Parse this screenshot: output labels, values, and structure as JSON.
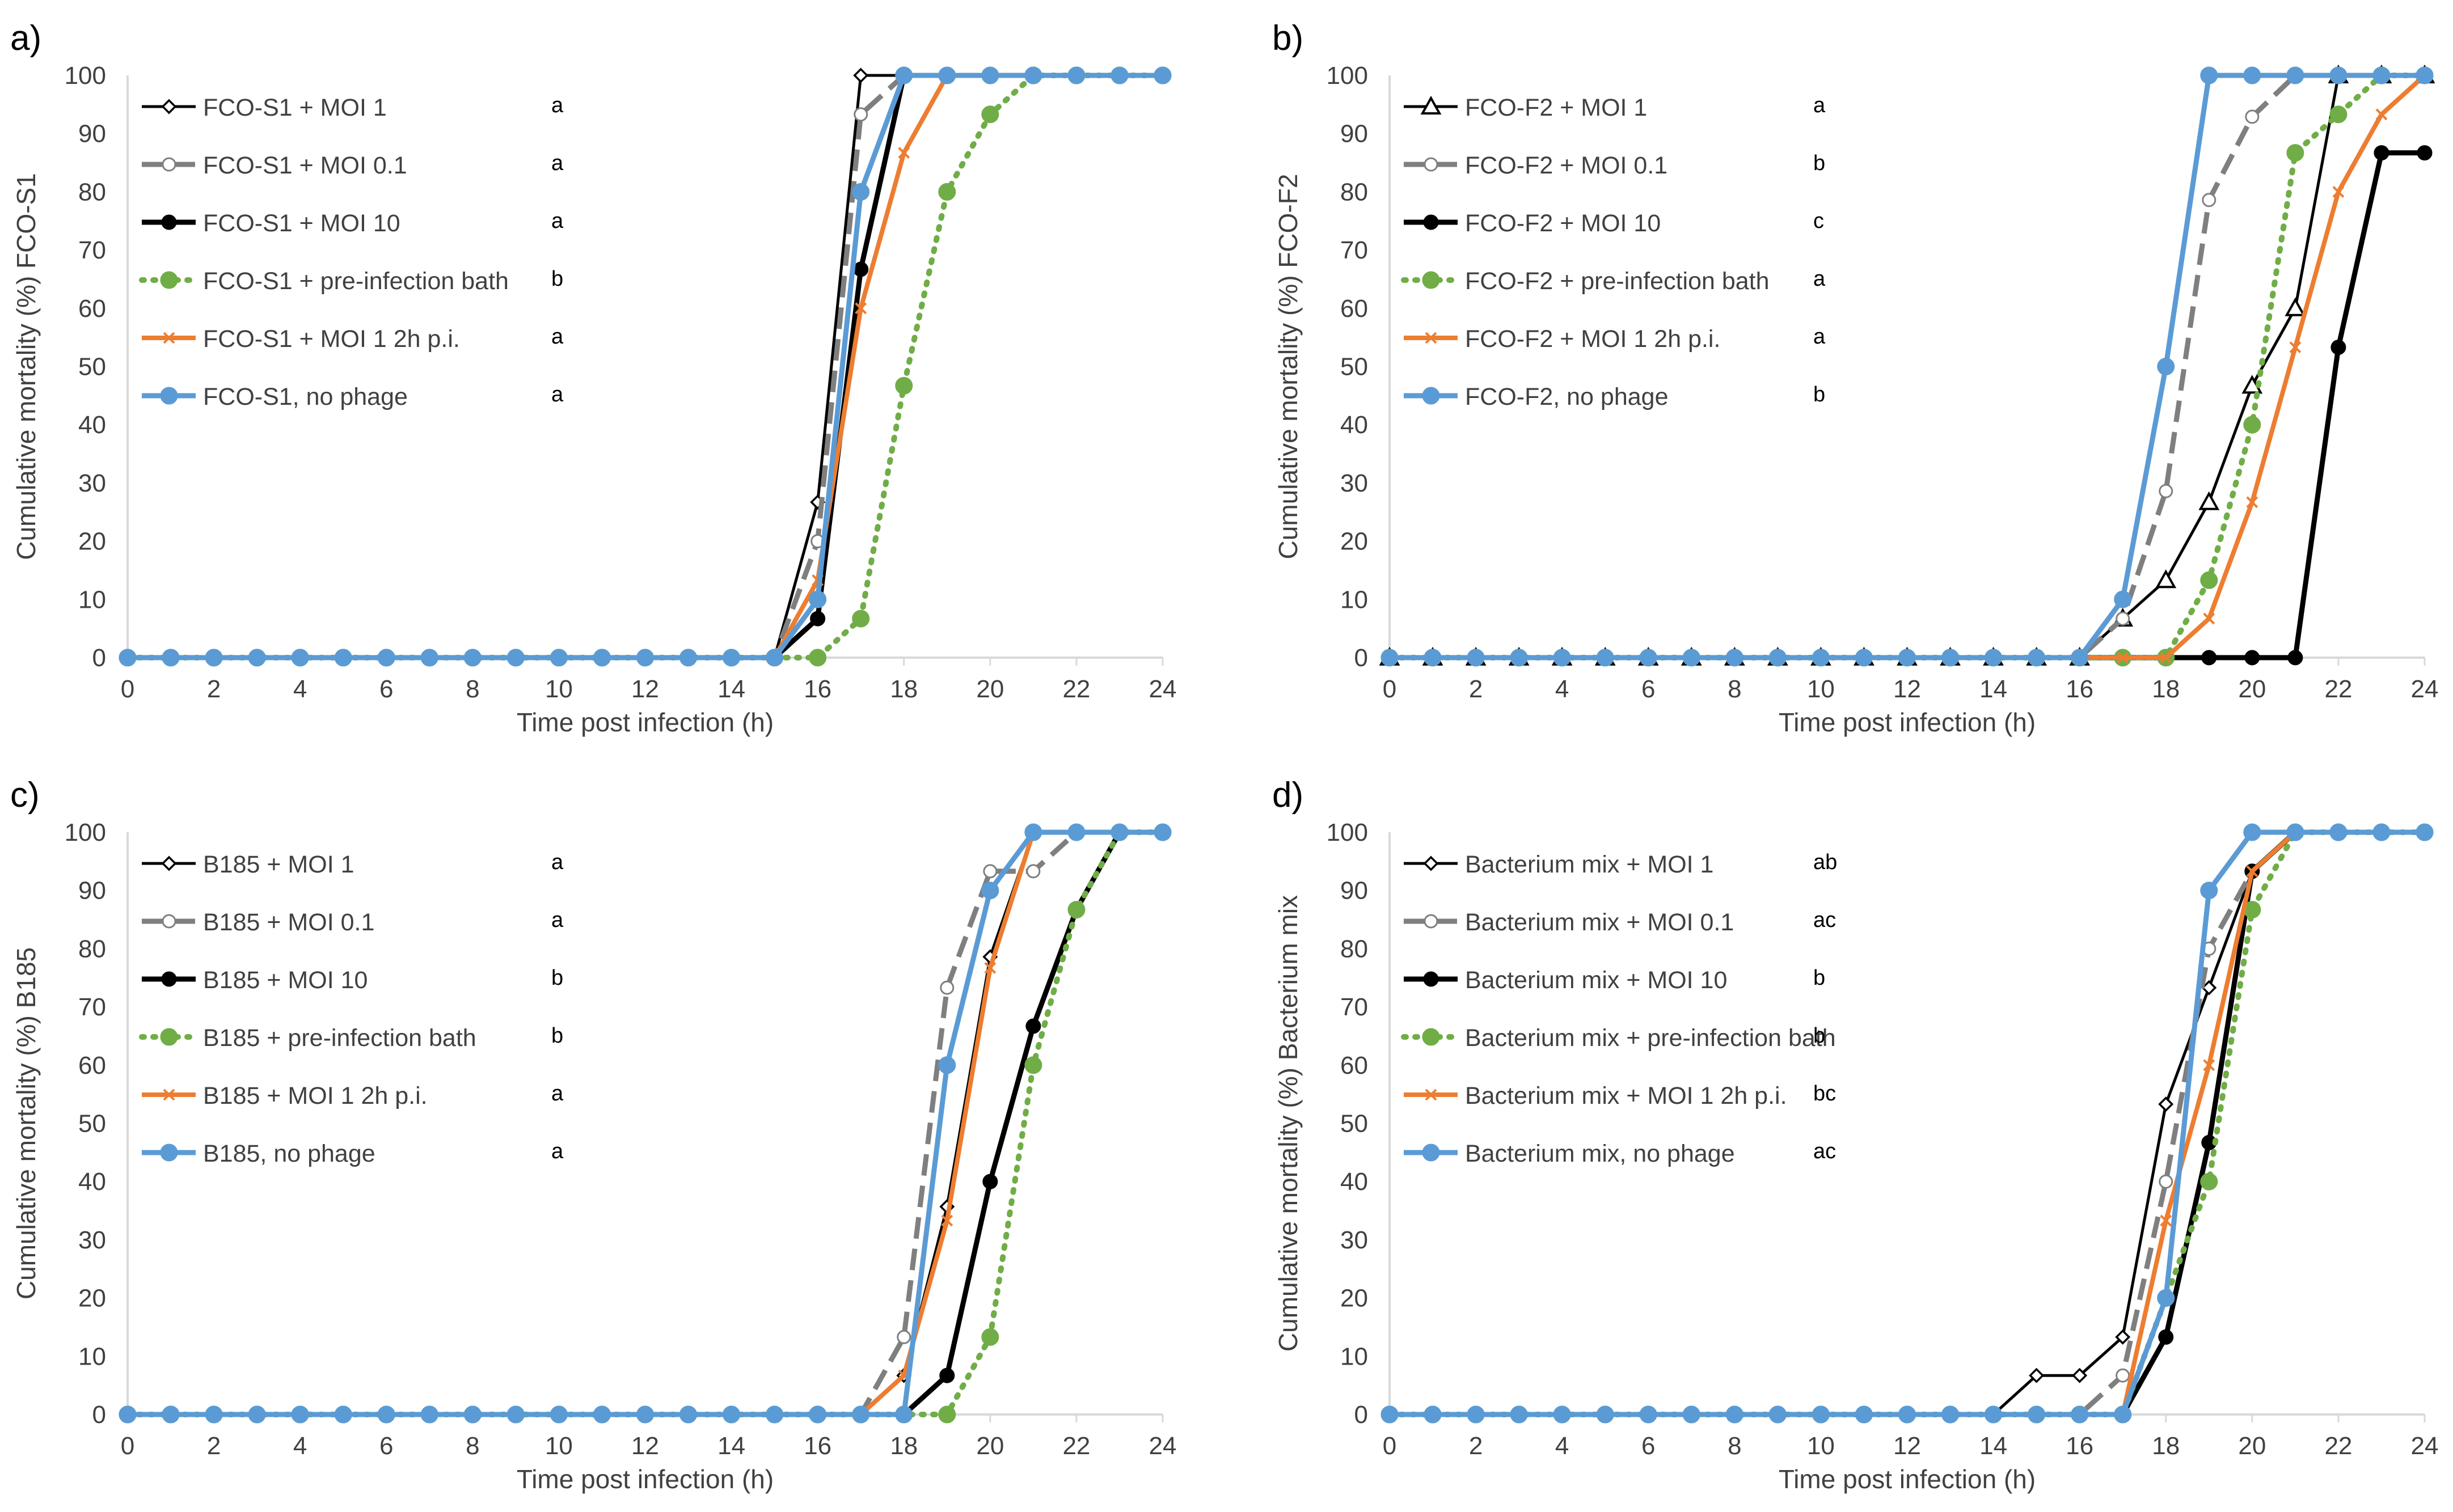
{
  "colors": {
    "moi1": "#000000",
    "moi01": "#7f7f7f",
    "moi10": "#000000",
    "bath": "#70ad47",
    "moi1_2h": "#ed7d31",
    "nophage": "#5b9bd5",
    "axis": "#d9d9d9",
    "text": "#404040"
  },
  "chart_data": [
    {
      "panel_label": "a)",
      "type": "line",
      "ylabel": "Cumulative mortality (%) FCO-S1",
      "xlabel": "Time post infection (h)",
      "xlim": [
        0,
        24
      ],
      "ylim": [
        0,
        100
      ],
      "x_ticks": [
        "0",
        "2",
        "4",
        "6",
        "8",
        "10",
        "12",
        "14",
        "16",
        "18",
        "20",
        "22",
        "24"
      ],
      "y_ticks": [
        "0",
        "10",
        "20",
        "30",
        "40",
        "50",
        "60",
        "70",
        "80",
        "90",
        "100"
      ],
      "x": [
        0,
        1,
        2,
        3,
        4,
        5,
        6,
        7,
        8,
        9,
        10,
        11,
        12,
        13,
        14,
        15,
        16,
        17,
        18,
        19,
        20,
        21,
        22,
        23,
        24
      ],
      "series": [
        {
          "name": "FCO-S1 + MOI 1",
          "style": "moi1",
          "letter": "a",
          "values": [
            0,
            0,
            0,
            0,
            0,
            0,
            0,
            0,
            0,
            0,
            0,
            0,
            0,
            0,
            0,
            0,
            26.7,
            100,
            100,
            100,
            100,
            100,
            100,
            100,
            100
          ]
        },
        {
          "name": "FCO-S1 + MOI 0.1",
          "style": "moi01",
          "letter": "a",
          "values": [
            0,
            0,
            0,
            0,
            0,
            0,
            0,
            0,
            0,
            0,
            0,
            0,
            0,
            0,
            0,
            0,
            20,
            93.3,
            100,
            100,
            100,
            100,
            100,
            100,
            100
          ]
        },
        {
          "name": "FCO-S1 + MOI 10",
          "style": "moi10",
          "letter": "a",
          "values": [
            0,
            0,
            0,
            0,
            0,
            0,
            0,
            0,
            0,
            0,
            0,
            0,
            0,
            0,
            0,
            0,
            6.7,
            66.7,
            100,
            100,
            100,
            100,
            100,
            100,
            100
          ]
        },
        {
          "name": "FCO-S1 + pre-infection bath",
          "style": "bath",
          "letter": "b",
          "values": [
            0,
            0,
            0,
            0,
            0,
            0,
            0,
            0,
            0,
            0,
            0,
            0,
            0,
            0,
            0,
            0,
            0,
            6.7,
            46.7,
            80,
            93.3,
            100,
            100,
            100,
            100
          ]
        },
        {
          "name": "FCO-S1 + MOI 1 2h p.i.",
          "style": "moi1_2h",
          "letter": "a",
          "values": [
            0,
            0,
            0,
            0,
            0,
            0,
            0,
            0,
            0,
            0,
            0,
            0,
            0,
            0,
            0,
            0,
            13.3,
            60,
            86.7,
            100,
            100,
            100,
            100,
            100,
            100
          ]
        },
        {
          "name": "FCO-S1, no phage",
          "style": "nophage",
          "letter": "a",
          "values": [
            0,
            0,
            0,
            0,
            0,
            0,
            0,
            0,
            0,
            0,
            0,
            0,
            0,
            0,
            0,
            0,
            10,
            80,
            100,
            100,
            100,
            100,
            100,
            100,
            100
          ]
        }
      ]
    },
    {
      "panel_label": "b)",
      "type": "line",
      "ylabel": "Cumulative mortality (%) FCO-F2",
      "xlabel": "Time post infection (h)",
      "xlim": [
        0,
        24
      ],
      "ylim": [
        0,
        100
      ],
      "x_ticks": [
        "0",
        "2",
        "4",
        "6",
        "8",
        "10",
        "12",
        "14",
        "16",
        "18",
        "20",
        "22",
        "24"
      ],
      "y_ticks": [
        "0",
        "10",
        "20",
        "30",
        "40",
        "50",
        "60",
        "70",
        "80",
        "90",
        "100"
      ],
      "x": [
        0,
        1,
        2,
        3,
        4,
        5,
        6,
        7,
        8,
        9,
        10,
        11,
        12,
        13,
        14,
        15,
        16,
        17,
        18,
        19,
        20,
        21,
        22,
        23,
        24
      ],
      "series": [
        {
          "name": "FCO-F2 +  MOI 1",
          "style": "moi1",
          "letter": "a",
          "values": [
            0,
            0,
            0,
            0,
            0,
            0,
            0,
            0,
            0,
            0,
            0,
            0,
            0,
            0,
            0,
            0,
            0,
            6.7,
            13.3,
            26.7,
            46.7,
            60,
            100,
            100,
            100
          ]
        },
        {
          "name": "FCO-F2 +  MOI 0.1",
          "style": "moi01",
          "letter": "b",
          "values": [
            0,
            0,
            0,
            0,
            0,
            0,
            0,
            0,
            0,
            0,
            0,
            0,
            0,
            0,
            0,
            0,
            0,
            6.7,
            28.6,
            78.6,
            92.9,
            100,
            100,
            100,
            100
          ]
        },
        {
          "name": "FCO-F2 +  MOI 10",
          "style": "moi10",
          "letter": "c",
          "values": [
            0,
            0,
            0,
            0,
            0,
            0,
            0,
            0,
            0,
            0,
            0,
            0,
            0,
            0,
            0,
            0,
            0,
            0,
            0,
            0,
            0,
            0,
            53.3,
            86.7,
            86.7
          ]
        },
        {
          "name": "FCO-F2  +  pre-infection bath",
          "style": "bath",
          "letter": "a",
          "values": [
            0,
            0,
            0,
            0,
            0,
            0,
            0,
            0,
            0,
            0,
            0,
            0,
            0,
            0,
            0,
            0,
            0,
            0,
            0,
            13.3,
            40,
            86.7,
            93.3,
            100,
            100
          ]
        },
        {
          "name": "FCO-F2 + MOI 1 2h p.i.",
          "style": "moi1_2h",
          "letter": "a",
          "values": [
            0,
            0,
            0,
            0,
            0,
            0,
            0,
            0,
            0,
            0,
            0,
            0,
            0,
            0,
            0,
            0,
            0,
            0,
            0,
            6.7,
            26.7,
            53.3,
            80,
            93.3,
            100
          ]
        },
        {
          "name": "FCO-F2, no phage",
          "style": "nophage",
          "letter": "b",
          "values": [
            0,
            0,
            0,
            0,
            0,
            0,
            0,
            0,
            0,
            0,
            0,
            0,
            0,
            0,
            0,
            0,
            0,
            10,
            50,
            100,
            100,
            100,
            100,
            100,
            100
          ]
        }
      ]
    },
    {
      "panel_label": "c)",
      "type": "line",
      "ylabel": "Cumulative mortality (%) B185",
      "xlabel": "Time post infection (h)",
      "xlim": [
        0,
        24
      ],
      "ylim": [
        0,
        100
      ],
      "x_ticks": [
        "0",
        "2",
        "4",
        "6",
        "8",
        "10",
        "12",
        "14",
        "16",
        "18",
        "20",
        "22",
        "24"
      ],
      "y_ticks": [
        "0",
        "10",
        "20",
        "30",
        "40",
        "50",
        "60",
        "70",
        "80",
        "90",
        "100"
      ],
      "x": [
        0,
        1,
        2,
        3,
        4,
        5,
        6,
        7,
        8,
        9,
        10,
        11,
        12,
        13,
        14,
        15,
        16,
        17,
        18,
        19,
        20,
        21,
        22,
        23,
        24
      ],
      "series": [
        {
          "name": "B185 +  MOI 1",
          "style": "moi1",
          "letter": "a",
          "values": [
            0,
            0,
            0,
            0,
            0,
            0,
            0,
            0,
            0,
            0,
            0,
            0,
            0,
            0,
            0,
            0,
            0,
            0,
            6.7,
            35.7,
            78.6,
            100,
            100,
            100,
            100
          ]
        },
        {
          "name": "B185 + MOI 0.1",
          "style": "moi01",
          "letter": "a",
          "values": [
            0,
            0,
            0,
            0,
            0,
            0,
            0,
            0,
            0,
            0,
            0,
            0,
            0,
            0,
            0,
            0,
            0,
            0,
            13.3,
            73.3,
            93.3,
            93.3,
            100,
            100,
            100
          ]
        },
        {
          "name": "B185 +  MOI 10",
          "style": "moi10",
          "letter": "b",
          "values": [
            0,
            0,
            0,
            0,
            0,
            0,
            0,
            0,
            0,
            0,
            0,
            0,
            0,
            0,
            0,
            0,
            0,
            0,
            0,
            6.7,
            40,
            66.7,
            86.7,
            100,
            100
          ]
        },
        {
          "name": "B185  +  pre-infection bath",
          "style": "bath",
          "letter": "b",
          "values": [
            0,
            0,
            0,
            0,
            0,
            0,
            0,
            0,
            0,
            0,
            0,
            0,
            0,
            0,
            0,
            0,
            0,
            0,
            0,
            0,
            13.3,
            60,
            86.7,
            100,
            100
          ]
        },
        {
          "name": "B185 +  MOI 1  2h p.i.",
          "style": "moi1_2h",
          "letter": "a",
          "values": [
            0,
            0,
            0,
            0,
            0,
            0,
            0,
            0,
            0,
            0,
            0,
            0,
            0,
            0,
            0,
            0,
            0,
            0,
            6.7,
            33.3,
            76.7,
            100,
            100,
            100,
            100
          ]
        },
        {
          "name": "B185, no phage",
          "style": "nophage",
          "letter": "a",
          "values": [
            0,
            0,
            0,
            0,
            0,
            0,
            0,
            0,
            0,
            0,
            0,
            0,
            0,
            0,
            0,
            0,
            0,
            0,
            0,
            60,
            90,
            100,
            100,
            100,
            100
          ]
        }
      ]
    },
    {
      "panel_label": "d)",
      "type": "line",
      "ylabel": "Cumulative mortality (%) Bacterium mix",
      "xlabel": "Time post infection (h)",
      "xlim": [
        0,
        24
      ],
      "ylim": [
        0,
        100
      ],
      "x_ticks": [
        "0",
        "2",
        "4",
        "6",
        "8",
        "10",
        "12",
        "14",
        "16",
        "18",
        "20",
        "22",
        "24"
      ],
      "y_ticks": [
        "0",
        "10",
        "20",
        "30",
        "40",
        "50",
        "60",
        "70",
        "80",
        "90",
        "100"
      ],
      "x": [
        0,
        1,
        2,
        3,
        4,
        5,
        6,
        7,
        8,
        9,
        10,
        11,
        12,
        13,
        14,
        15,
        16,
        17,
        18,
        19,
        20,
        21,
        22,
        23,
        24
      ],
      "series": [
        {
          "name": "Bacterium mix +  MOI 1",
          "style": "moi1",
          "letter": "ab",
          "values": [
            0,
            0,
            0,
            0,
            0,
            0,
            0,
            0,
            0,
            0,
            0,
            0,
            0,
            0,
            0,
            6.7,
            6.7,
            13.3,
            53.3,
            73.3,
            93.3,
            100,
            100,
            100,
            100
          ]
        },
        {
          "name": "Bacterium mix +  MOI 0.1",
          "style": "moi01",
          "letter": "ac",
          "values": [
            0,
            0,
            0,
            0,
            0,
            0,
            0,
            0,
            0,
            0,
            0,
            0,
            0,
            0,
            0,
            0,
            0,
            6.7,
            40,
            80,
            93.3,
            100,
            100,
            100,
            100
          ]
        },
        {
          "name": "Bacterium mix +  MOI 10",
          "style": "moi10",
          "letter": "b",
          "values": [
            0,
            0,
            0,
            0,
            0,
            0,
            0,
            0,
            0,
            0,
            0,
            0,
            0,
            0,
            0,
            0,
            0,
            0,
            13.3,
            46.7,
            93.3,
            100,
            100,
            100,
            100
          ]
        },
        {
          "name": "Bacterium mix +  pre-infection bath",
          "style": "bath",
          "letter": "b",
          "values": [
            0,
            0,
            0,
            0,
            0,
            0,
            0,
            0,
            0,
            0,
            0,
            0,
            0,
            0,
            0,
            0,
            0,
            0,
            20,
            40,
            86.7,
            100,
            100,
            100,
            100
          ]
        },
        {
          "name": "Bacterium mix + MOI 1  2h p.i.",
          "style": "moi1_2h",
          "letter": "bc",
          "values": [
            0,
            0,
            0,
            0,
            0,
            0,
            0,
            0,
            0,
            0,
            0,
            0,
            0,
            0,
            0,
            0,
            0,
            0,
            33.3,
            60,
            93.3,
            100,
            100,
            100,
            100
          ]
        },
        {
          "name": "Bacterium mix, no phage",
          "style": "nophage",
          "letter": "ac",
          "values": [
            0,
            0,
            0,
            0,
            0,
            0,
            0,
            0,
            0,
            0,
            0,
            0,
            0,
            0,
            0,
            0,
            0,
            0,
            20,
            90,
            100,
            100,
            100,
            100,
            100
          ]
        }
      ]
    }
  ]
}
